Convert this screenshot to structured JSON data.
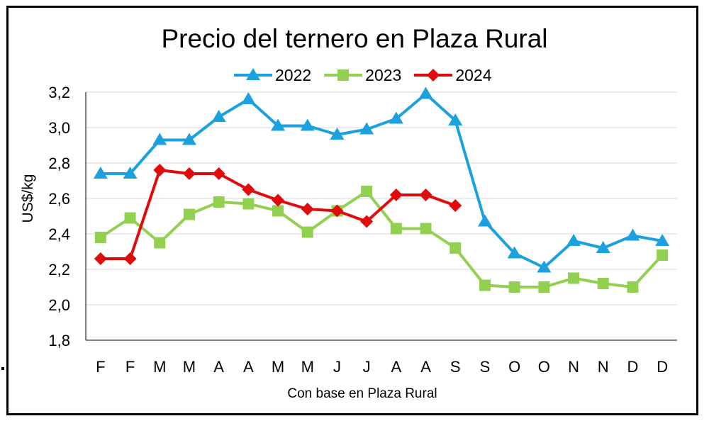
{
  "chart_data": {
    "type": "line",
    "title": "Precio del ternero en Plaza Rural",
    "ylabel": "US$/kg",
    "xlabel": "Con base en Plaza Rural",
    "ylim": [
      1.8,
      3.2
    ],
    "yticks": [
      "1,8",
      "2,0",
      "2,2",
      "2,4",
      "2,6",
      "2,8",
      "3,0",
      "3,2"
    ],
    "ytick_values": [
      1.8,
      2.0,
      2.2,
      2.4,
      2.6,
      2.8,
      3.0,
      3.2
    ],
    "categories": [
      "F",
      "F",
      "M",
      "M",
      "A",
      "A",
      "M",
      "M",
      "J",
      "J",
      "A",
      "A",
      "S",
      "S",
      "O",
      "O",
      "N",
      "N",
      "D",
      "D"
    ],
    "grid": true,
    "legend": "top",
    "series": [
      {
        "name": "2022",
        "color": "#1ba1dd",
        "marker": "triangle",
        "values": [
          2.74,
          2.74,
          2.93,
          2.93,
          3.06,
          3.16,
          3.01,
          3.01,
          2.96,
          2.99,
          3.05,
          3.19,
          3.04,
          2.47,
          2.29,
          2.21,
          2.36,
          2.32,
          2.39,
          2.36
        ]
      },
      {
        "name": "2023",
        "color": "#92d050",
        "marker": "square",
        "values": [
          2.38,
          2.49,
          2.35,
          2.51,
          2.58,
          2.57,
          2.53,
          2.41,
          2.53,
          2.64,
          2.43,
          2.43,
          2.32,
          2.11,
          2.1,
          2.1,
          2.15,
          2.12,
          2.1,
          2.28
        ]
      },
      {
        "name": "2024",
        "color": "#e00b0b",
        "marker": "diamond",
        "values": [
          2.26,
          2.26,
          2.76,
          2.74,
          2.74,
          2.65,
          2.59,
          2.54,
          2.53,
          2.47,
          2.62,
          2.62,
          2.56,
          null,
          null,
          null,
          null,
          null,
          null,
          null
        ]
      }
    ]
  }
}
